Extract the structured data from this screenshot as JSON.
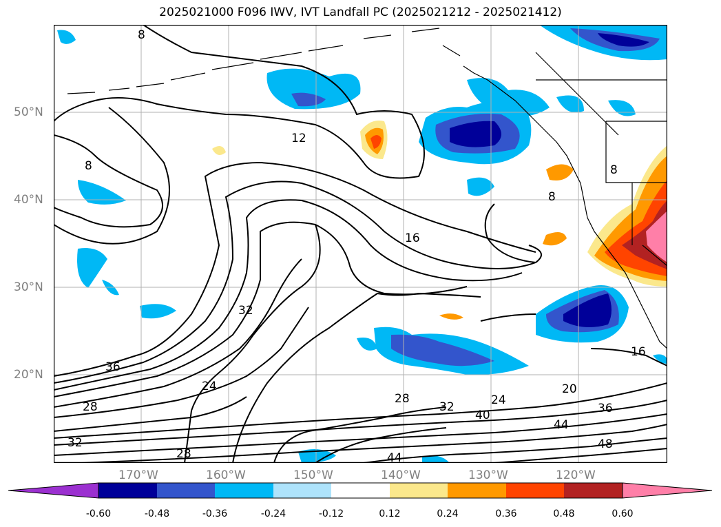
{
  "title": "2025021000 F096 IWV, IVT Landfall PC (2025021212 - 2025021412)",
  "map": {
    "extent": {
      "lon_min": -180,
      "lon_max": -110,
      "lat_min": 10,
      "lat_max": 60
    },
    "lat_ticks": [
      {
        "value": 50,
        "label": "50°N"
      },
      {
        "value": 40,
        "label": "40°N"
      },
      {
        "value": 30,
        "label": "30°N"
      },
      {
        "value": 20,
        "label": "20°N"
      }
    ],
    "lon_ticks": [
      {
        "value": -170,
        "label": "170°W"
      },
      {
        "value": -160,
        "label": "160°W"
      },
      {
        "value": -150,
        "label": "150°W"
      },
      {
        "value": -140,
        "label": "140°W"
      },
      {
        "value": -130,
        "label": "130°W"
      },
      {
        "value": -120,
        "label": "120°W"
      }
    ],
    "contour_labels": [
      "8",
      "8",
      "12",
      "16",
      "16",
      "8",
      "8",
      "20",
      "24",
      "24",
      "28",
      "28",
      "28",
      "32",
      "32",
      "32",
      "36",
      "36",
      "40",
      "44",
      "44",
      "48"
    ]
  },
  "colorbar": {
    "levels": [
      "-0.60",
      "-0.48",
      "-0.36",
      "-0.24",
      "-0.12",
      "0.12",
      "0.24",
      "0.36",
      "0.48",
      "0.60"
    ],
    "colors": {
      "under": "#9b30d0",
      "c1": "#000099",
      "c2": "#3355cc",
      "c3": "#00b8f5",
      "c4": "#aee3fb",
      "c5": "#ffffff",
      "c6": "#fbe88c",
      "c7": "#ff9900",
      "c8": "#ff4400",
      "c9": "#b22222",
      "over": "#ff7fa8"
    }
  }
}
